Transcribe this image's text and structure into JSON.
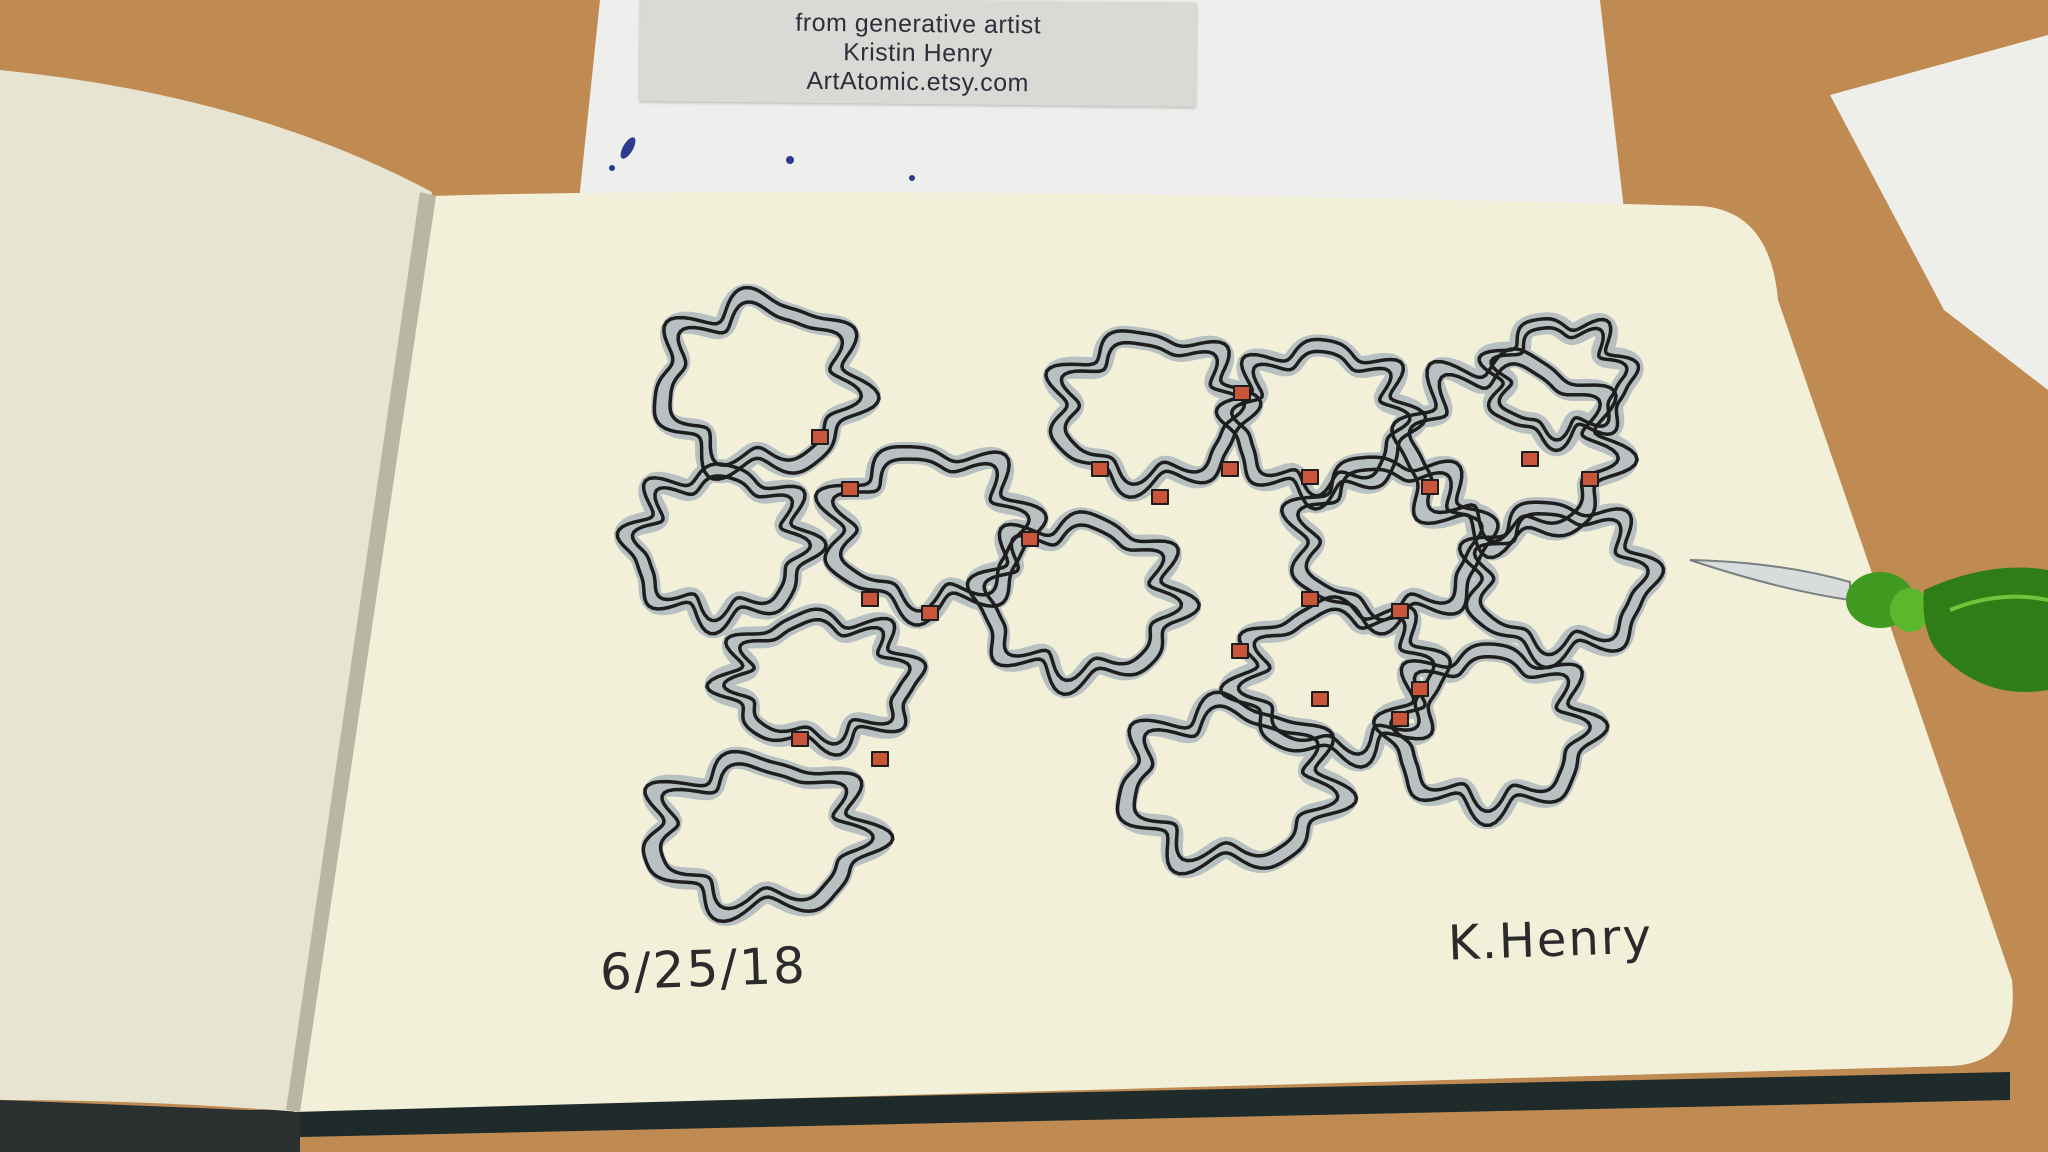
{
  "scene": {
    "description_free": true,
    "colors": {
      "table": "#c08b52",
      "paper": "#f3f0da",
      "page_left": "#ecead6",
      "ink": "#1e1e1e",
      "wash": "#b8c0c2",
      "accent": "#c9553a",
      "pen_glass": "#3f9a1f"
    }
  },
  "label": {
    "line1": "from generative artist",
    "line2": "Kristin Henry",
    "line3": "ArtAtomic.etsy.com"
  },
  "sketch": {
    "date": "6/25/18",
    "signature": "K.Henry"
  }
}
